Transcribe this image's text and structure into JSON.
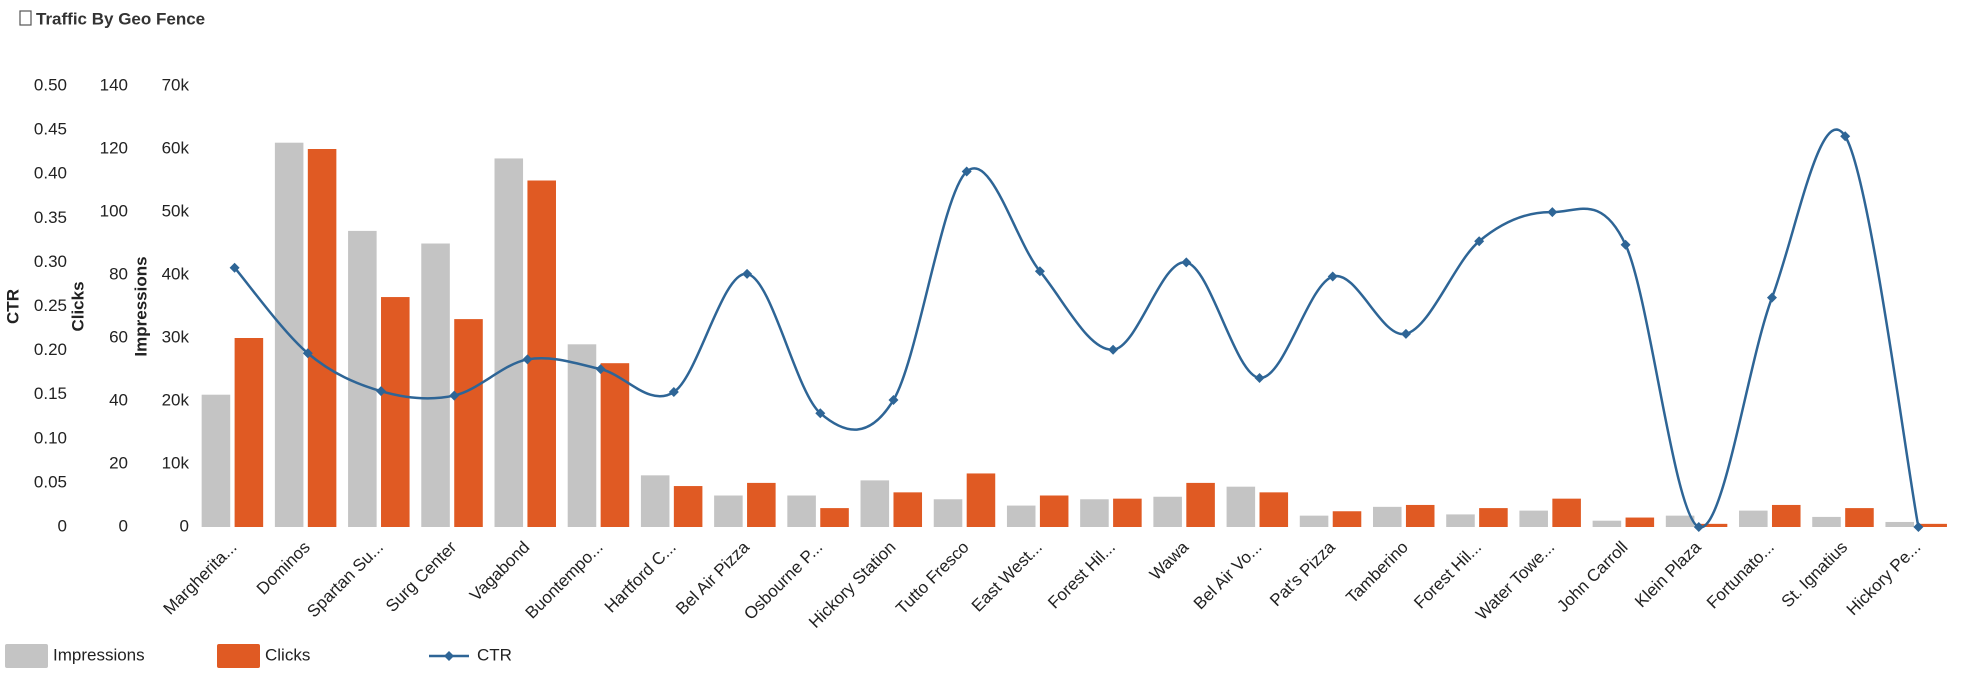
{
  "chart_data": {
    "type": "combo",
    "title": "Traffic By Geo Fence",
    "categories": [
      "Margherita...",
      "Dominos",
      "Spartan Su...",
      "Surg Center",
      "Vagabond",
      "Buontempo...",
      "Hartford C...",
      "Bel Air Pizza",
      "Osbourne P...",
      "Hickory Station",
      "Tutto Fresco",
      "East West...",
      "Forest Hil...",
      "Wawa",
      "Bel Air Vo...",
      "Pat's Pizza",
      "Tamberino",
      "Forest Hil...",
      "Water Towe...",
      "John Carroll",
      "Klein Plaza",
      "Fortunato...",
      "St. Ignatius",
      "Hickory Pe..."
    ],
    "series": [
      {
        "name": "Impressions",
        "type": "bar",
        "axis": "y",
        "color": "#c4c4c4",
        "values": [
          21000,
          61000,
          47000,
          45000,
          58500,
          29000,
          8200,
          5000,
          5000,
          7400,
          4400,
          3400,
          4400,
          4800,
          6400,
          1800,
          3200,
          2000,
          2600,
          1000,
          1800,
          2600,
          1600,
          800
        ]
      },
      {
        "name": "Clicks",
        "type": "bar",
        "axis": "y2",
        "color": "#e05a23",
        "values": [
          60,
          120,
          73,
          66,
          110,
          52,
          13,
          14,
          6,
          11,
          17,
          10,
          9,
          14,
          11,
          5,
          7,
          6,
          9,
          3,
          1,
          7,
          6,
          1
        ]
      },
      {
        "name": "CTR",
        "type": "line",
        "axis": "y3",
        "color": "#2e6596",
        "values": [
          0.294,
          0.197,
          0.154,
          0.149,
          0.19,
          0.179,
          0.153,
          0.287,
          0.129,
          0.144,
          0.403,
          0.29,
          0.201,
          0.3,
          0.169,
          0.284,
          0.219,
          0.324,
          0.357,
          0.32,
          0,
          0.26,
          0.443,
          0
        ]
      }
    ],
    "ylabel": "Impressions",
    "ylim": [
      0,
      70000
    ],
    "yticks": [
      0,
      {
        "value": 10000,
        "label": "10k"
      },
      {
        "value": 20000,
        "label": "20k"
      },
      {
        "value": 30000,
        "label": "30k"
      },
      {
        "value": 40000,
        "label": "40k"
      },
      {
        "value": 50000,
        "label": "50k"
      },
      {
        "value": 60000,
        "label": "60k"
      },
      {
        "value": 70000,
        "label": "70k"
      }
    ],
    "y2label": "Clicks",
    "y2lim": [
      0,
      140
    ],
    "y2ticks": [
      0,
      20,
      40,
      60,
      80,
      100,
      120,
      140
    ],
    "y3label": "CTR",
    "y3lim": [
      0,
      0.5
    ],
    "y3ticks": [
      0,
      0.05,
      {
        "value": 0.1,
        "label": "0.10"
      },
      0.15,
      {
        "value": 0.2,
        "label": "0.20"
      },
      0.25,
      {
        "value": 0.3,
        "label": "0.30"
      },
      0.35,
      {
        "value": 0.4,
        "label": "0.40"
      },
      0.45,
      {
        "value": 0.5,
        "label": "0.50"
      }
    ],
    "grid": false,
    "legend": "bottom"
  }
}
